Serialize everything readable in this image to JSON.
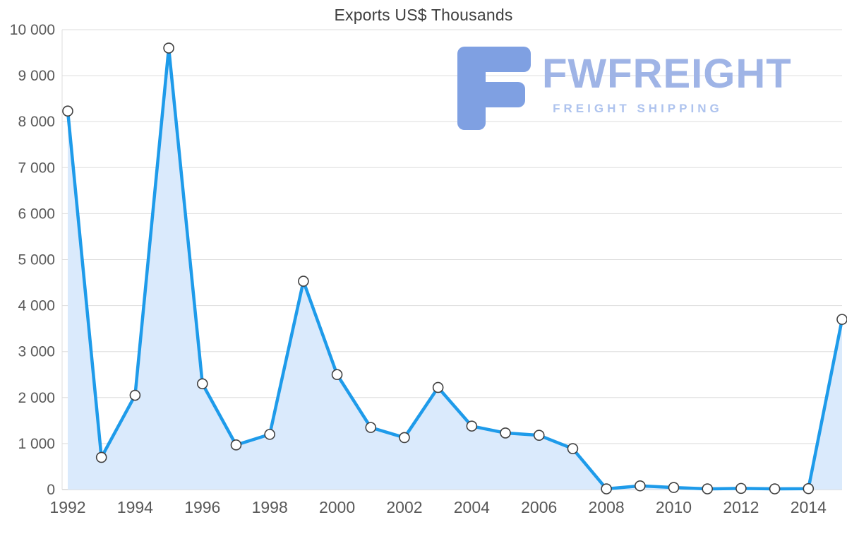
{
  "title": "Exports US$ Thousands",
  "watermark": {
    "brand": "FWFREIGHT",
    "tagline": "FREIGHT SHIPPING",
    "icon_color": "#7fa0e2",
    "brand_color": "#9fb4e6",
    "tagline_color": "#aec3ee"
  },
  "chart_data": {
    "type": "area",
    "title": "Exports US$ Thousands",
    "x": [
      1992,
      1993,
      1994,
      1995,
      1996,
      1997,
      1998,
      1999,
      2000,
      2001,
      2002,
      2003,
      2004,
      2005,
      2006,
      2007,
      2008,
      2009,
      2010,
      2011,
      2012,
      2013,
      2014,
      2015
    ],
    "values": [
      8230,
      700,
      2050,
      9600,
      2300,
      970,
      1200,
      4530,
      2500,
      1350,
      1130,
      2220,
      1380,
      1230,
      1180,
      890,
      15,
      80,
      45,
      15,
      25,
      15,
      20,
      3700
    ],
    "xlabel": "",
    "ylabel": "",
    "xlim": [
      1992,
      2015
    ],
    "ylim": [
      0,
      10000
    ],
    "x_tick_years": [
      1992,
      1994,
      1996,
      1998,
      2000,
      2002,
      2004,
      2006,
      2008,
      2010,
      2012,
      2014
    ],
    "x_tick_labels": [
      "1992",
      "1994",
      "1996",
      "1998",
      "2000",
      "2002",
      "2004",
      "2006",
      "2008",
      "2010",
      "2012",
      "2014"
    ],
    "y_ticks": [
      0,
      1000,
      2000,
      3000,
      4000,
      5000,
      6000,
      7000,
      8000,
      9000,
      10000
    ],
    "y_tick_labels": [
      "0",
      "1 000",
      "2 000",
      "3 000",
      "4 000",
      "5 000",
      "6 000",
      "7 000",
      "8 000",
      "9 000",
      "10 000"
    ],
    "grid": true,
    "legend": false,
    "line_color": "#1e9bea",
    "area_color": "#daeafc",
    "marker_fill": "#ffffff",
    "marker_stroke": "#404040",
    "grid_color": "#dddddd",
    "axis_color": "#c2c2c2",
    "tick_label_color": "#595959",
    "title_color": "#3f3f3f"
  }
}
